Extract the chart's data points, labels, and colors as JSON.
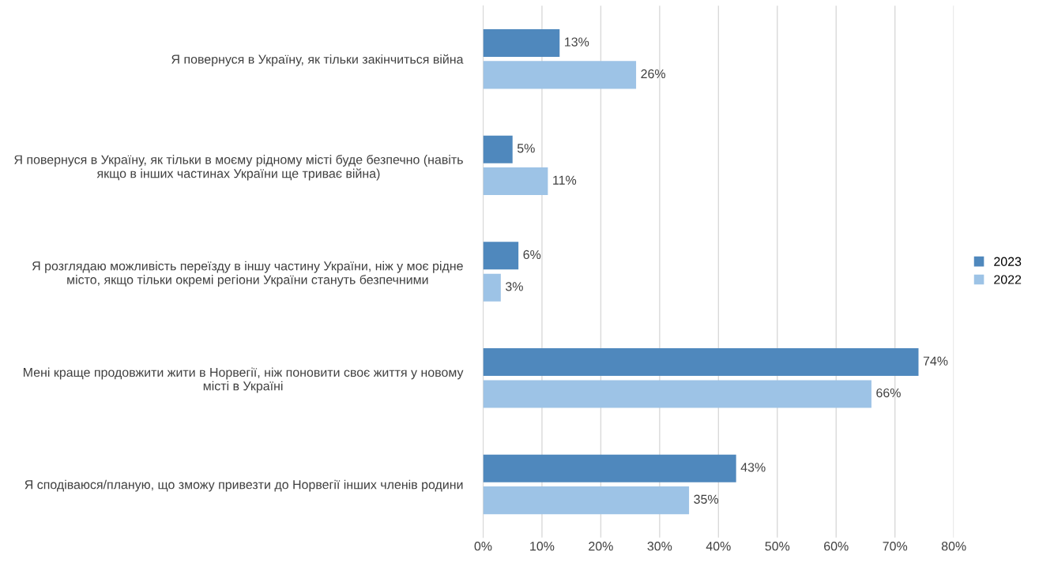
{
  "chart_data": {
    "type": "bar",
    "orientation": "horizontal",
    "categories": [
      "Я повернуся в Україну, як тільки закінчиться війна",
      "Я повернуся в Україну, як тільки в моєму рідному місті буде безпечно (навіть якщо в інших частинах України ще триває війна)",
      "Я розглядаю можливість переїзду в іншу частину України, ніж у моє рідне місто, якщо тільки окремі регіони України стануть безпечними",
      "Мені краще продовжити жити в Норвегії, ніж поновити своє життя у новому місті в Україні",
      "Я сподіваюся/планую, що зможу привезти до Норвегії інших членів родини"
    ],
    "series": [
      {
        "name": "2023",
        "color": "#4f88bd",
        "values": [
          13,
          5,
          6,
          74,
          43
        ],
        "value_labels": [
          "13%",
          "5%",
          "6%",
          "74%",
          "43%"
        ]
      },
      {
        "name": "2022",
        "color": "#9dc3e6",
        "values": [
          26,
          11,
          3,
          66,
          35
        ],
        "value_labels": [
          "26%",
          "11%",
          "3%",
          "66%",
          "35%"
        ]
      }
    ],
    "xlim": [
      0,
      80
    ],
    "xticks": [
      {
        "value": 0,
        "label": "0%"
      },
      {
        "value": 10,
        "label": "10%"
      },
      {
        "value": 20,
        "label": "20%"
      },
      {
        "value": 30,
        "label": "30%"
      },
      {
        "value": 40,
        "label": "40%"
      },
      {
        "value": 50,
        "label": "50%"
      },
      {
        "value": 60,
        "label": "60%"
      },
      {
        "value": 70,
        "label": "70%"
      },
      {
        "value": 80,
        "label": "80%"
      }
    ],
    "grid": "x",
    "legend": "right"
  }
}
